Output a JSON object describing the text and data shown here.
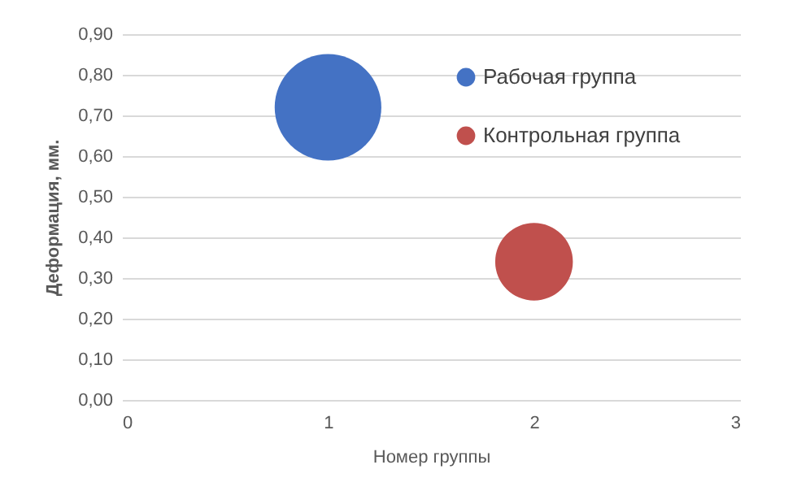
{
  "chart_data": {
    "type": "bubble",
    "xlabel": "Номер группы",
    "ylabel": "Деформация, мм.",
    "xlim": [
      0,
      3
    ],
    "xticks": [
      0,
      1,
      2,
      3
    ],
    "ylim": [
      0,
      0.9
    ],
    "yticks": [
      {
        "value": 0,
        "label": "0,00"
      },
      {
        "value": 0.1,
        "label": "0,10"
      },
      {
        "value": 0.2,
        "label": "0,20"
      },
      {
        "value": 0.3,
        "label": "0,30"
      },
      {
        "value": 0.4,
        "label": "0,40"
      },
      {
        "value": 0.5,
        "label": "0,50"
      },
      {
        "value": 0.6,
        "label": "0,60"
      },
      {
        "value": 0.7,
        "label": "0,70"
      },
      {
        "value": 0.8,
        "label": "0,80"
      },
      {
        "value": 0.9,
        "label": "0,90"
      }
    ],
    "grid": "y",
    "legend": "top right",
    "series": [
      {
        "name": "Рабочая группа",
        "color": "#4472c4",
        "x": [
          1
        ],
        "values": [
          0.72
        ],
        "sizes": [
          1
        ]
      },
      {
        "name": "Контрольная группа",
        "color": "#c0504d",
        "x": [
          2
        ],
        "values": [
          0.34
        ],
        "sizes": [
          0.53
        ]
      }
    ]
  }
}
